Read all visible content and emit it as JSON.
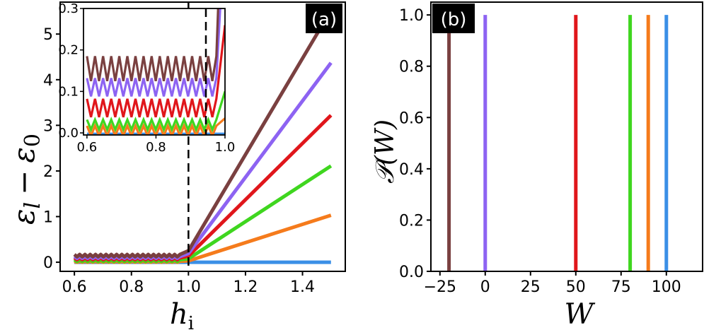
{
  "chart_data": [
    {
      "panel": "(a)",
      "type": "line",
      "xlabel_main": "h",
      "xlabel_sub": "i",
      "ylabel_text": "ε",
      "ylabel_sub": "l",
      "ylabel_minus": "−",
      "ylabel_text2": "ε",
      "ylabel_sub2": "0",
      "xlim": [
        0.55,
        1.55
      ],
      "ylim": [
        -0.2,
        5.7
      ],
      "xticks": [
        "0.6",
        "0.8",
        "1.0",
        "1.2",
        "1.4"
      ],
      "xtick_values": [
        0.6,
        0.8,
        1.0,
        1.2,
        1.4
      ],
      "yticks": [
        "0",
        "1",
        "2",
        "3",
        "4",
        "5"
      ],
      "ytick_values": [
        0,
        1,
        2,
        3,
        4,
        5
      ],
      "vline_x": 1.0,
      "series": [
        {
          "name": "blue",
          "color": "#3b8fe6",
          "plateau": 0.0,
          "amp": 0.0,
          "transition": 0.97,
          "end": 0.0
        },
        {
          "name": "orange",
          "color": "#f57b1c",
          "plateau": 0.01,
          "amp": 0.01,
          "transition": 0.97,
          "end": 1.03
        },
        {
          "name": "green",
          "color": "#3fd61f",
          "plateau": 0.035,
          "amp": 0.02,
          "transition": 0.97,
          "end": 2.11
        },
        {
          "name": "red",
          "color": "#e0161b",
          "plateau": 0.075,
          "amp": 0.02,
          "transition": 0.97,
          "end": 3.22
        },
        {
          "name": "purple",
          "color": "#8d63f2",
          "plateau": 0.105,
          "amp": 0.02,
          "transition": 0.97,
          "end": 4.37
        },
        {
          "name": "brown",
          "color": "#7a4040",
          "plateau": 0.145,
          "amp": 0.025,
          "transition": 0.97,
          "end": 5.52
        }
      ],
      "x_end": 1.5,
      "inset": {
        "xlim": [
          0.59,
          1.0
        ],
        "ylim": [
          -0.005,
          0.3
        ],
        "xticks": [
          "0.6",
          "0.8",
          "1.0"
        ],
        "xtick_values": [
          0.6,
          0.8,
          1.0
        ],
        "yticks": [
          "0.0",
          "0.1",
          "0.2",
          "0.3"
        ],
        "ytick_values": [
          0.0,
          0.1,
          0.2,
          0.3
        ],
        "oscillations": 16
      }
    },
    {
      "panel": "(b)",
      "type": "bar",
      "xlabel": "W",
      "ylabel_main": "𝒫",
      "ylabel_paren": "(W)",
      "xlim": [
        -30,
        120
      ],
      "ylim": [
        0.0,
        1.05
      ],
      "xticks": [
        "−25",
        "0",
        "25",
        "50",
        "75",
        "100"
      ],
      "xtick_values": [
        -25,
        0,
        25,
        50,
        75,
        100
      ],
      "yticks": [
        "0.0",
        "0.2",
        "0.4",
        "0.6",
        "0.8",
        "1.0"
      ],
      "ytick_values": [
        0.0,
        0.2,
        0.4,
        0.6,
        0.8,
        1.0
      ],
      "bars": [
        {
          "name": "brown",
          "color": "#7a4040",
          "x": -20,
          "value": 1.0
        },
        {
          "name": "purple",
          "color": "#8d63f2",
          "x": 0,
          "value": 1.0
        },
        {
          "name": "red",
          "color": "#e0161b",
          "x": 50,
          "value": 1.0
        },
        {
          "name": "green",
          "color": "#3fd61f",
          "x": 80,
          "value": 1.0
        },
        {
          "name": "orange",
          "color": "#f57b1c",
          "x": 90,
          "value": 1.0
        },
        {
          "name": "blue",
          "color": "#3b8fe6",
          "x": 100,
          "value": 1.0
        }
      ]
    }
  ]
}
